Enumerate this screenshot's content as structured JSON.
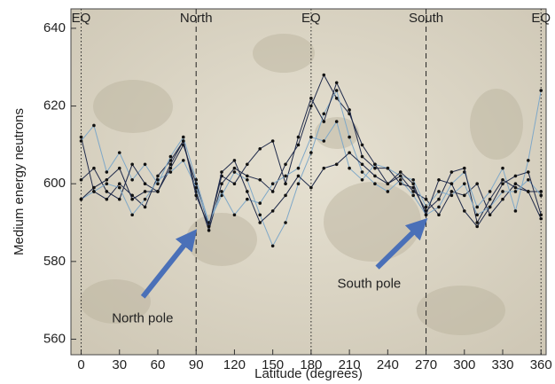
{
  "chart_data": {
    "type": "line",
    "xlabel": "Latitude (degrees)",
    "ylabel": "Medium energy neutrons",
    "x": [
      0,
      10,
      20,
      30,
      40,
      50,
      60,
      70,
      80,
      90,
      100,
      110,
      120,
      130,
      140,
      150,
      160,
      170,
      180,
      190,
      200,
      210,
      220,
      230,
      240,
      250,
      260,
      270,
      280,
      290,
      300,
      310,
      320,
      330,
      340,
      350,
      360
    ],
    "series": [
      {
        "color": "#1f2a4a",
        "values": [
          612,
          598,
          596,
          600,
          597,
          594,
          602,
          606,
          611,
          598,
          588,
          600,
          604,
          602,
          601,
          598,
          605,
          610,
          620,
          628,
          622,
          618,
          610,
          605,
          600,
          602,
          598,
          596,
          592,
          598,
          597,
          600,
          592,
          596,
          600,
          598,
          591
        ]
      },
      {
        "color": "#7fa8c8",
        "values": [
          611,
          615,
          603,
          608,
          601,
          605,
          600,
          607,
          612,
          601,
          590,
          597,
          603,
          601,
          592,
          584,
          590,
          600,
          608,
          618,
          624,
          612,
          603,
          600,
          598,
          601,
          597,
          592,
          594,
          600,
          603,
          594,
          598,
          604,
          593,
          606,
          624
        ]
      },
      {
        "color": "#1f2a4a",
        "values": [
          601,
          604,
          598,
          596,
          605,
          600,
          598,
          604,
          610,
          600,
          589,
          602,
          600,
          605,
          609,
          611,
          600,
          612,
          622,
          616,
          626,
          619,
          607,
          604,
          604,
          600,
          599,
          593,
          596,
          603,
          604,
          590,
          596,
          601,
          599,
          598,
          598
        ]
      },
      {
        "color": "#7fa8c8",
        "values": [
          596,
          598,
          600,
          599,
          592,
          596,
          601,
          603,
          606,
          599,
          590,
          598,
          592,
          596,
          595,
          600,
          602,
          604,
          612,
          611,
          616,
          604,
          601,
          605,
          604,
          602,
          601,
          594,
          598,
          597,
          600,
          592,
          594,
          598,
          598,
          601,
          597
        ]
      },
      {
        "color": "#1f2a4a",
        "values": [
          596,
          599,
          601,
          604,
          596,
          598,
          598,
          605,
          611,
          597,
          589,
          603,
          606,
          598,
          590,
          593,
          597,
          602,
          599,
          604,
          605,
          608,
          605,
          602,
          600,
          603,
          600,
          592,
          601,
          600,
          593,
          589,
          594,
          600,
          602,
          603,
          592
        ]
      }
    ],
    "xlim": [
      -8,
      364
    ],
    "ylim": [
      556,
      645
    ],
    "xticks": [
      0,
      30,
      60,
      90,
      120,
      150,
      180,
      210,
      240,
      270,
      300,
      330,
      360
    ],
    "yticks": [
      560,
      580,
      600,
      620,
      640
    ],
    "markers": [
      {
        "x": 0,
        "label": "EQ",
        "style": "dotted"
      },
      {
        "x": 90,
        "label": "North",
        "style": "dashed"
      },
      {
        "x": 180,
        "label": "EQ",
        "style": "dotted"
      },
      {
        "x": 270,
        "label": "South",
        "style": "dashed"
      },
      {
        "x": 360,
        "label": "EQ",
        "style": "dotted"
      }
    ],
    "annotations": [
      {
        "text": "North pole",
        "x": 90,
        "y": 588
      },
      {
        "text": "South pole",
        "x": 270,
        "y": 591
      }
    ],
    "annotation_color": "#4a70b8"
  }
}
